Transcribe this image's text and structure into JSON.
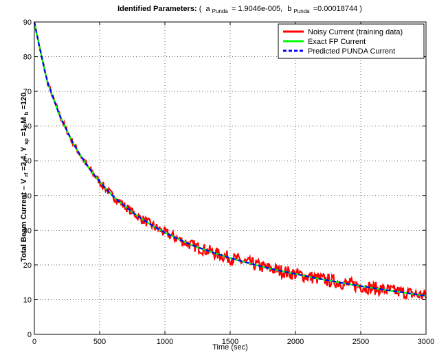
{
  "chart_data": {
    "type": "line",
    "title": {
      "bold": "Identified Parameters:",
      "a_label": "a",
      "a_sub": "Punda",
      "a_value": "= 1.9046e-005,",
      "b_label": "b",
      "b_sub": "Punda",
      "b_value": "=0.00018744 )",
      "open_paren": "( "
    },
    "xlabel": "Time (sec)",
    "ylabel": {
      "p1": "Total Beam Current – V",
      "p1_sub": "rf",
      "p2": "=2.4,  Y",
      "p2_sub": "sp",
      "p3": "=1,  M",
      "p3_sub": "b",
      "p4": "=120"
    },
    "xlim": [
      0,
      3000
    ],
    "ylim": [
      0,
      90
    ],
    "x_ticks": [
      "0",
      "500",
      "1000",
      "1500",
      "2000",
      "2500",
      "3000"
    ],
    "y_ticks": [
      "0",
      "10",
      "20",
      "30",
      "40",
      "50",
      "60",
      "70",
      "80",
      "90"
    ],
    "grid": true,
    "legend_position": "top-right",
    "series": [
      {
        "name": "Noisy Current (training data)",
        "color": "#ff0000",
        "style": "solid",
        "noise": "±1 to ±2"
      },
      {
        "name": "Exact FP Current",
        "color": "#00ff00",
        "style": "solid"
      },
      {
        "name": "Predicted PUNDA Current",
        "color": "#0000ff",
        "style": "dashed"
      }
    ],
    "x": [
      0,
      100,
      200,
      300,
      400,
      500,
      600,
      800,
      1000,
      1200,
      1500,
      1800,
      2000,
      2200,
      2500,
      2800,
      3000
    ],
    "values": [
      90,
      72.8,
      62.6,
      54.9,
      48.8,
      44.0,
      39.9,
      33.8,
      29.3,
      25.8,
      22.0,
      19.0,
      17.4,
      15.9,
      13.9,
      12.2,
      11.1
    ]
  }
}
